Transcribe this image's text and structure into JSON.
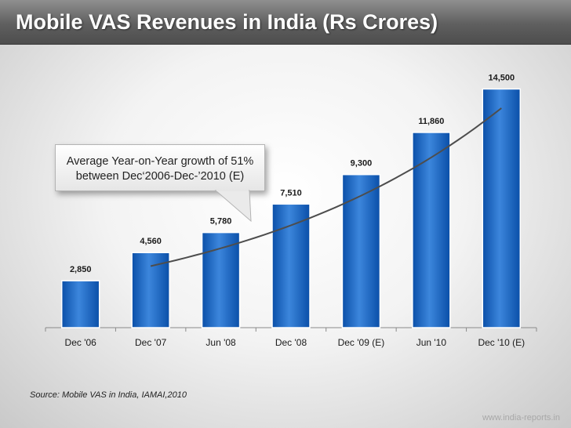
{
  "header": {
    "title": "Mobile VAS Revenues in India (Rs Crores)"
  },
  "callout": {
    "line1": "Average Year-on-Year growth of 51%",
    "line2": "between Dec‘2006-Dec-’2010 (E)"
  },
  "footer": {
    "source": "Source: Mobile VAS in India, IAMAI,2010",
    "site": "www.india-reports.in"
  },
  "colors": {
    "bar_dark": "#0a4fa8",
    "bar_light": "#4a90e2",
    "trend": "#4d4d4d",
    "title_bg": "#5f5f5f"
  },
  "chart_data": {
    "type": "bar",
    "title": "Mobile VAS Revenues in India (Rs Crores)",
    "categories": [
      "Dec '06",
      "Dec '07",
      "Jun '08",
      "Dec '08",
      "Dec '09 (E)",
      "Jun '10",
      "Dec '10 (E)"
    ],
    "series": [
      {
        "name": "Revenue (Rs Crores)",
        "values": [
          2850,
          4560,
          5780,
          7510,
          9300,
          11860,
          14500
        ]
      }
    ],
    "data_labels": [
      "2,850",
      "4,560",
      "5,780",
      "7,510",
      "9,300",
      "11,860",
      "14,500"
    ],
    "trendline": {
      "from_category": "Dec '07",
      "to_category": "Dec '10 (E)"
    },
    "ylim": [
      0,
      16000
    ],
    "grid": false,
    "legend": "none"
  }
}
